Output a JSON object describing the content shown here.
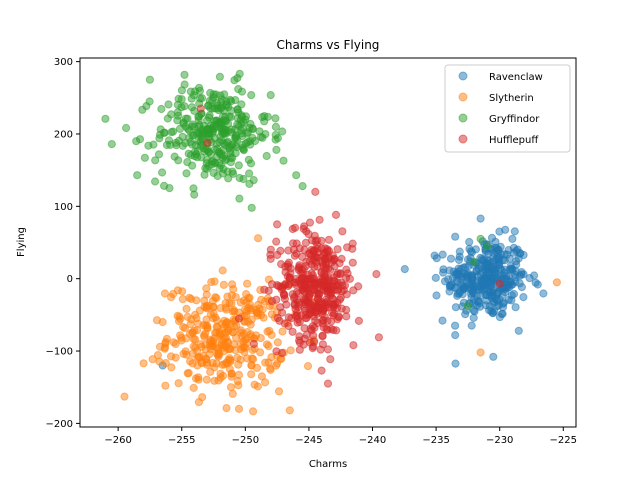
{
  "chart_data": {
    "type": "scatter",
    "title": "Charms vs Flying",
    "xlabel": "Charms",
    "ylabel": "Flying",
    "xlim": [
      -263,
      -224
    ],
    "ylim": [
      -205,
      305
    ],
    "xticks": [
      -260,
      -255,
      -250,
      -245,
      -240,
      -235,
      -230,
      -225
    ],
    "yticks": [
      -200,
      -100,
      0,
      100,
      200,
      300
    ],
    "grid": false,
    "legend_position": "top-right",
    "point_alpha": 0.5,
    "series": [
      {
        "name": "Ravenclaw",
        "color": "#1f77b4",
        "clusters": [
          {
            "center": [
              -231,
              0
            ],
            "spread": [
              1.6,
              28
            ],
            "count": 330
          }
        ],
        "extra_points": [
          [
            -256.5,
            -120
          ],
          [
            -231.5,
            83
          ],
          [
            -233.5,
            -78
          ],
          [
            -230.5,
            -108
          ],
          [
            -234.5,
            -58
          ],
          [
            -227,
            -8
          ],
          [
            -228.5,
            -72
          ],
          [
            -233.5,
            58
          ],
          [
            -229,
            55
          ]
        ]
      },
      {
        "name": "Slytherin",
        "color": "#ff7f0e",
        "clusters": [
          {
            "center": [
              -251.5,
              -80
            ],
            "spread": [
              2.3,
              36
            ],
            "count": 330
          }
        ],
        "extra_points": [
          [
            -259.5,
            -163
          ],
          [
            -246.5,
            -182
          ],
          [
            -225.5,
            -5
          ],
          [
            -231.5,
            -102
          ],
          [
            -249,
            56
          ],
          [
            -258,
            -117
          ],
          [
            -256.5,
            -60
          ],
          [
            -250.5,
            -180
          ]
        ]
      },
      {
        "name": "Gryffindor",
        "color": "#2ca02c",
        "clusters": [
          {
            "center": [
              -252.5,
              200
            ],
            "spread": [
              2.2,
              34
            ],
            "count": 330
          }
        ],
        "extra_points": [
          [
            -261,
            221
          ],
          [
            -260.5,
            186
          ],
          [
            -258.5,
            143
          ],
          [
            -247,
            163
          ],
          [
            -246,
            143
          ],
          [
            -245.5,
            128
          ],
          [
            -232,
            23
          ],
          [
            -231,
            45
          ],
          [
            -232.5,
            -38
          ],
          [
            -231.5,
            55
          ],
          [
            -252,
            279
          ],
          [
            -257.5,
            275
          ]
        ]
      },
      {
        "name": "Hufflepuff",
        "color": "#d62728",
        "clusters": [
          {
            "center": [
              -244.5,
              -10
            ],
            "spread": [
              1.5,
              38
            ],
            "count": 380
          }
        ],
        "extra_points": [
          [
            -253,
            188
          ],
          [
            -239.5,
            -81
          ],
          [
            -243.5,
            -145
          ],
          [
            -244,
            -127
          ],
          [
            -241.5,
            -92
          ],
          [
            -244.5,
            120
          ],
          [
            -247.5,
            75
          ],
          [
            -230,
            -7
          ],
          [
            -253.5,
            235
          ],
          [
            -250.5,
            -55
          ],
          [
            -248,
            40
          ]
        ]
      }
    ]
  }
}
